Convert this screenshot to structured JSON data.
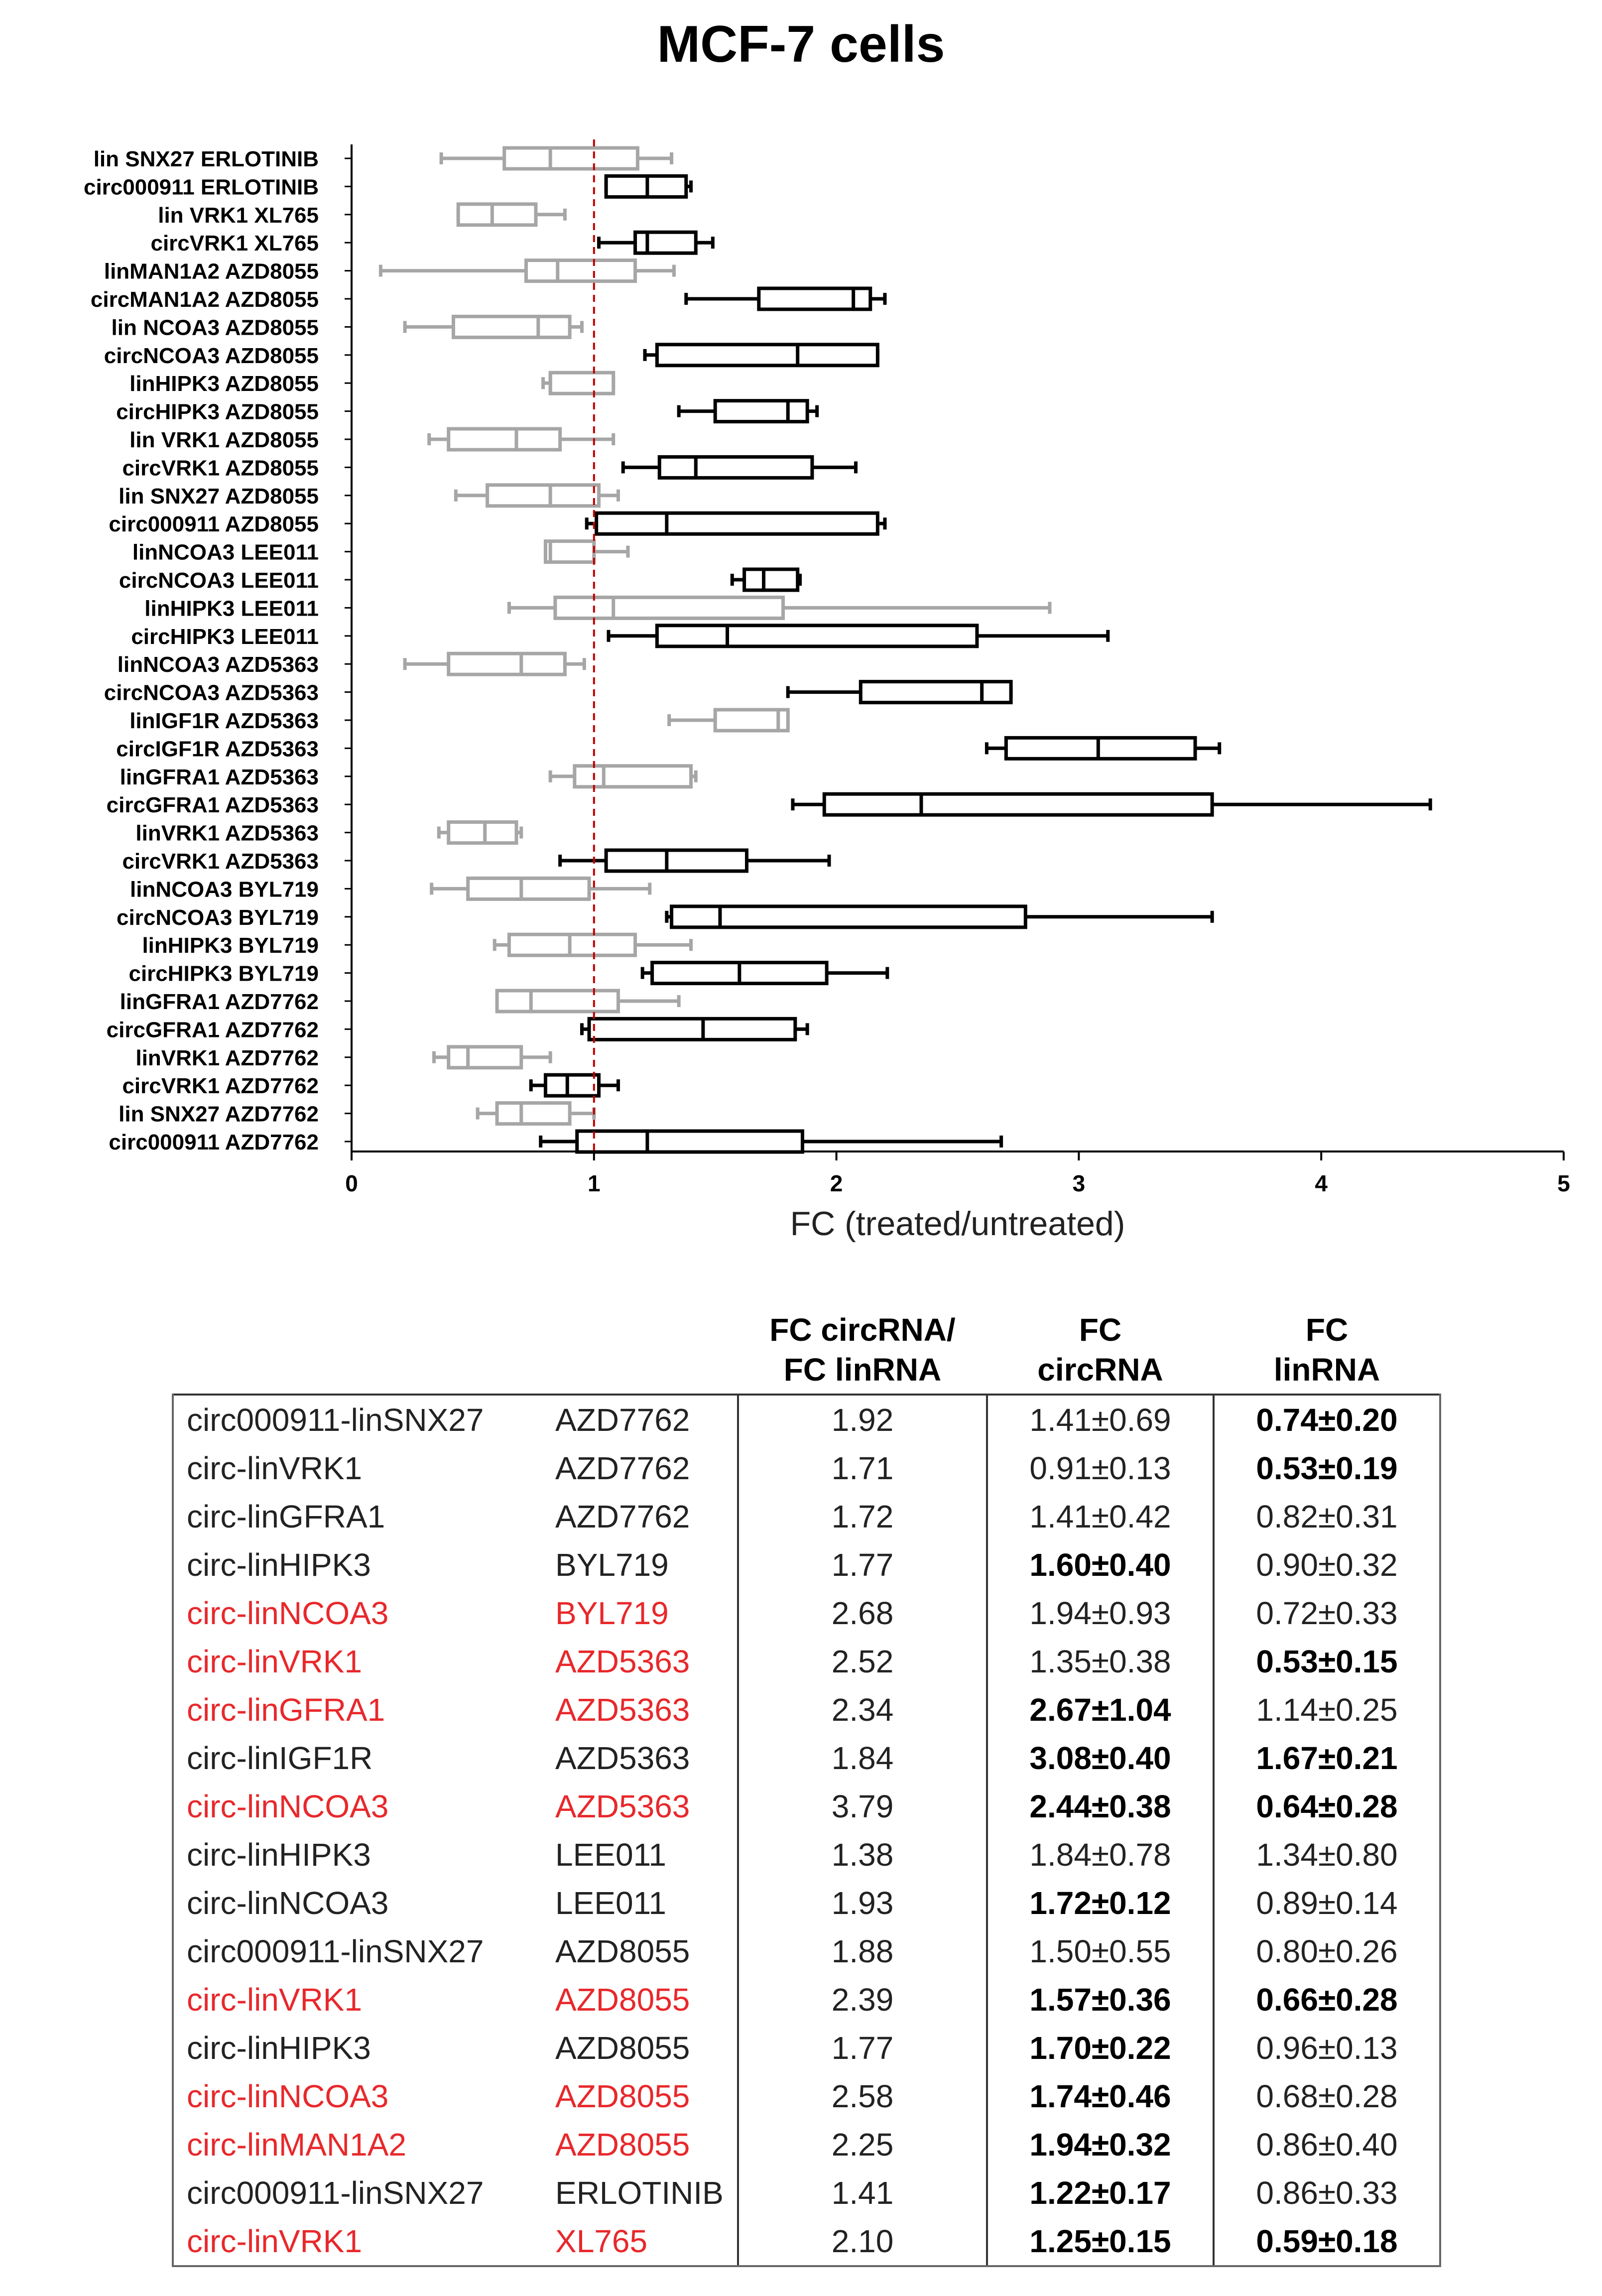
{
  "title": "MCF-7 cells",
  "chart_data": {
    "type": "box",
    "orientation": "horizontal",
    "xlabel": "FC (treated/untreated)",
    "xlim": [
      0,
      5
    ],
    "xticks": [
      "0",
      "1",
      "2",
      "3",
      "4",
      "5"
    ],
    "reference_line": 1,
    "colors": {
      "circ": "#000000",
      "lin": "#a6a6a6",
      "reference": "#c00000"
    },
    "series": [
      {
        "label": "lin SNX27 ERLOTINIB",
        "kind": "lin",
        "min": 0.37,
        "q1": 0.63,
        "median": 0.82,
        "q3": 1.18,
        "max": 1.32
      },
      {
        "label": "circ000911 ERLOTINIB",
        "kind": "circ",
        "min": 1.05,
        "q1": 1.05,
        "median": 1.22,
        "q3": 1.38,
        "max": 1.4
      },
      {
        "label": "lin VRK1 XL765",
        "kind": "lin",
        "min": 0.44,
        "q1": 0.44,
        "median": 0.58,
        "q3": 0.76,
        "max": 0.88
      },
      {
        "label": "circVRK1 XL765",
        "kind": "circ",
        "min": 1.02,
        "q1": 1.17,
        "median": 1.22,
        "q3": 1.42,
        "max": 1.49
      },
      {
        "label": "linMAN1A2 AZD8055",
        "kind": "lin",
        "min": 0.12,
        "q1": 0.72,
        "median": 0.85,
        "q3": 1.17,
        "max": 1.33
      },
      {
        "label": "circMAN1A2 AZD8055",
        "kind": "circ",
        "min": 1.38,
        "q1": 1.68,
        "median": 2.07,
        "q3": 2.14,
        "max": 2.2
      },
      {
        "label": "lin NCOA3 AZD8055",
        "kind": "lin",
        "min": 0.22,
        "q1": 0.42,
        "median": 0.77,
        "q3": 0.9,
        "max": 0.95
      },
      {
        "label": "circNCOA3 AZD8055",
        "kind": "circ",
        "min": 1.21,
        "q1": 1.26,
        "median": 1.84,
        "q3": 2.17,
        "max": 2.17
      },
      {
        "label": "linHIPK3 AZD8055",
        "kind": "lin",
        "min": 0.79,
        "q1": 0.82,
        "median": 0.82,
        "q3": 1.08,
        "max": 1.08
      },
      {
        "label": "circHIPK3 AZD8055",
        "kind": "circ",
        "min": 1.35,
        "q1": 1.5,
        "median": 1.8,
        "q3": 1.88,
        "max": 1.92
      },
      {
        "label": "lin VRK1 AZD8055",
        "kind": "lin",
        "min": 0.32,
        "q1": 0.4,
        "median": 0.68,
        "q3": 0.86,
        "max": 1.08
      },
      {
        "label": "circVRK1 AZD8055",
        "kind": "circ",
        "min": 1.12,
        "q1": 1.27,
        "median": 1.42,
        "q3": 1.9,
        "max": 2.08
      },
      {
        "label": "lin SNX27 AZD8055",
        "kind": "lin",
        "min": 0.43,
        "q1": 0.56,
        "median": 0.82,
        "q3": 1.02,
        "max": 1.1
      },
      {
        "label": "circ000911 AZD8055",
        "kind": "circ",
        "min": 0.97,
        "q1": 1.01,
        "median": 1.3,
        "q3": 2.17,
        "max": 2.2
      },
      {
        "label": "linNCOA3 LEE011",
        "kind": "lin",
        "min": 0.8,
        "q1": 0.8,
        "median": 0.82,
        "q3": 1.0,
        "max": 1.14
      },
      {
        "label": "circNCOA3 LEE011",
        "kind": "circ",
        "min": 1.57,
        "q1": 1.62,
        "median": 1.7,
        "q3": 1.84,
        "max": 1.85
      },
      {
        "label": "linHIPK3 LEE011",
        "kind": "lin",
        "min": 0.65,
        "q1": 0.84,
        "median": 1.08,
        "q3": 1.78,
        "max": 2.88
      },
      {
        "label": "circHIPK3 LEE011",
        "kind": "circ",
        "min": 1.06,
        "q1": 1.26,
        "median": 1.55,
        "q3": 2.58,
        "max": 3.12
      },
      {
        "label": "linNCOA3 AZD5363",
        "kind": "lin",
        "min": 0.22,
        "q1": 0.4,
        "median": 0.7,
        "q3": 0.88,
        "max": 0.96
      },
      {
        "label": "circNCOA3 AZD5363",
        "kind": "circ",
        "min": 1.8,
        "q1": 2.1,
        "median": 2.6,
        "q3": 2.72,
        "max": 2.72
      },
      {
        "label": "linIGF1R AZD5363",
        "kind": "lin",
        "min": 1.31,
        "q1": 1.5,
        "median": 1.76,
        "q3": 1.8,
        "max": 1.8
      },
      {
        "label": "circIGF1R AZD5363",
        "kind": "circ",
        "min": 2.62,
        "q1": 2.7,
        "median": 3.08,
        "q3": 3.48,
        "max": 3.58
      },
      {
        "label": "linGFRA1 AZD5363",
        "kind": "lin",
        "min": 0.82,
        "q1": 0.92,
        "median": 1.04,
        "q3": 1.4,
        "max": 1.42
      },
      {
        "label": "circGFRA1 AZD5363",
        "kind": "circ",
        "min": 1.82,
        "q1": 1.95,
        "median": 2.35,
        "q3": 3.55,
        "max": 4.45
      },
      {
        "label": "linVRK1 AZD5363",
        "kind": "lin",
        "min": 0.36,
        "q1": 0.4,
        "median": 0.55,
        "q3": 0.68,
        "max": 0.7
      },
      {
        "label": "circVRK1 AZD5363",
        "kind": "circ",
        "min": 0.86,
        "q1": 1.05,
        "median": 1.3,
        "q3": 1.63,
        "max": 1.97
      },
      {
        "label": "linNCOA3 BYL719",
        "kind": "lin",
        "min": 0.33,
        "q1": 0.48,
        "median": 0.7,
        "q3": 0.98,
        "max": 1.23
      },
      {
        "label": "circNCOA3 BYL719",
        "kind": "circ",
        "min": 1.3,
        "q1": 1.32,
        "median": 1.52,
        "q3": 2.78,
        "max": 3.55
      },
      {
        "label": "linHIPK3 BYL719",
        "kind": "lin",
        "min": 0.59,
        "q1": 0.65,
        "median": 0.9,
        "q3": 1.17,
        "max": 1.4
      },
      {
        "label": "circHIPK3 BYL719",
        "kind": "circ",
        "min": 1.2,
        "q1": 1.24,
        "median": 1.6,
        "q3": 1.96,
        "max": 2.21
      },
      {
        "label": "linGFRA1 AZD7762",
        "kind": "lin",
        "min": 0.6,
        "q1": 0.6,
        "median": 0.74,
        "q3": 1.1,
        "max": 1.35
      },
      {
        "label": "circGFRA1 AZD7762",
        "kind": "circ",
        "min": 0.95,
        "q1": 0.98,
        "median": 1.45,
        "q3": 1.83,
        "max": 1.88
      },
      {
        "label": "linVRK1 AZD7762",
        "kind": "lin",
        "min": 0.34,
        "q1": 0.4,
        "median": 0.48,
        "q3": 0.7,
        "max": 0.82
      },
      {
        "label": "circVRK1 AZD7762",
        "kind": "circ",
        "min": 0.74,
        "q1": 0.8,
        "median": 0.89,
        "q3": 1.02,
        "max": 1.1
      },
      {
        "label": "lin SNX27 AZD7762",
        "kind": "lin",
        "min": 0.52,
        "q1": 0.6,
        "median": 0.7,
        "q3": 0.9,
        "max": 1.0
      },
      {
        "label": "circ000911 AZD7762",
        "kind": "circ",
        "min": 0.78,
        "q1": 0.93,
        "median": 1.22,
        "q3": 1.86,
        "max": 2.68
      }
    ]
  },
  "table": {
    "headers": {
      "ratio": "FC circRNA/ FC linRNA",
      "circ": "FC circRNA",
      "lin": "FC linRNA"
    },
    "highlight_color": "#e8282b",
    "rows": [
      {
        "pair": "circ000911-linSNX27",
        "drug": "AZD7762",
        "ratio": "1.92",
        "circ": "1.41±0.69",
        "lin": "0.74±0.20",
        "circ_bold": false,
        "lin_bold": true,
        "highlight": false
      },
      {
        "pair": "circ-linVRK1",
        "drug": "AZD7762",
        "ratio": "1.71",
        "circ": "0.91±0.13",
        "lin": "0.53±0.19",
        "circ_bold": false,
        "lin_bold": true,
        "highlight": false
      },
      {
        "pair": "circ-linGFRA1",
        "drug": "AZD7762",
        "ratio": "1.72",
        "circ": "1.41±0.42",
        "lin": "0.82±0.31",
        "circ_bold": false,
        "lin_bold": false,
        "highlight": false
      },
      {
        "pair": "circ-linHIPK3",
        "drug": "BYL719",
        "ratio": "1.77",
        "circ": "1.60±0.40",
        "lin": "0.90±0.32",
        "circ_bold": true,
        "lin_bold": false,
        "highlight": false
      },
      {
        "pair": "circ-linNCOA3",
        "drug": "BYL719",
        "ratio": "2.68",
        "circ": "1.94±0.93",
        "lin": "0.72±0.33",
        "circ_bold": false,
        "lin_bold": false,
        "highlight": true
      },
      {
        "pair": "circ-linVRK1",
        "drug": "AZD5363",
        "ratio": "2.52",
        "circ": "1.35±0.38",
        "lin": "0.53±0.15",
        "circ_bold": false,
        "lin_bold": true,
        "highlight": true
      },
      {
        "pair": "circ-linGFRA1",
        "drug": "AZD5363",
        "ratio": "2.34",
        "circ": "2.67±1.04",
        "lin": "1.14±0.25",
        "circ_bold": true,
        "lin_bold": false,
        "highlight": true
      },
      {
        "pair": "circ-linIGF1R",
        "drug": "AZD5363",
        "ratio": "1.84",
        "circ": "3.08±0.40",
        "lin": "1.67±0.21",
        "circ_bold": true,
        "lin_bold": true,
        "highlight": false
      },
      {
        "pair": "circ-linNCOA3",
        "drug": "AZD5363",
        "ratio": "3.79",
        "circ": "2.44±0.38",
        "lin": "0.64±0.28",
        "circ_bold": true,
        "lin_bold": true,
        "highlight": true
      },
      {
        "pair": "circ-linHIPK3",
        "drug": "LEE011",
        "ratio": "1.38",
        "circ": "1.84±0.78",
        "lin": "1.34±0.80",
        "circ_bold": false,
        "lin_bold": false,
        "highlight": false
      },
      {
        "pair": "circ-linNCOA3",
        "drug": "LEE011",
        "ratio": "1.93",
        "circ": "1.72±0.12",
        "lin": "0.89±0.14",
        "circ_bold": true,
        "lin_bold": false,
        "highlight": false
      },
      {
        "pair": "circ000911-linSNX27",
        "drug": "AZD8055",
        "ratio": "1.88",
        "circ": "1.50±0.55",
        "lin": "0.80±0.26",
        "circ_bold": false,
        "lin_bold": false,
        "highlight": false
      },
      {
        "pair": "circ-linVRK1",
        "drug": "AZD8055",
        "ratio": "2.39",
        "circ": "1.57±0.36",
        "lin": "0.66±0.28",
        "circ_bold": true,
        "lin_bold": true,
        "highlight": true
      },
      {
        "pair": "circ-linHIPK3",
        "drug": "AZD8055",
        "ratio": "1.77",
        "circ": "1.70±0.22",
        "lin": "0.96±0.13",
        "circ_bold": true,
        "lin_bold": false,
        "highlight": false
      },
      {
        "pair": "circ-linNCOA3",
        "drug": "AZD8055",
        "ratio": "2.58",
        "circ": "1.74±0.46",
        "lin": "0.68±0.28",
        "circ_bold": true,
        "lin_bold": false,
        "highlight": true
      },
      {
        "pair": "circ-linMAN1A2",
        "drug": "AZD8055",
        "ratio": "2.25",
        "circ": "1.94±0.32",
        "lin": "0.86±0.40",
        "circ_bold": true,
        "lin_bold": false,
        "highlight": true
      },
      {
        "pair": "circ000911-linSNX27",
        "drug": "ERLOTINIB",
        "ratio": "1.41",
        "circ": "1.22±0.17",
        "lin": "0.86±0.33",
        "circ_bold": true,
        "lin_bold": false,
        "highlight": false
      },
      {
        "pair": "circ-linVRK1",
        "drug": "XL765",
        "ratio": "2.10",
        "circ": "1.25±0.15",
        "lin": "0.59±0.18",
        "circ_bold": true,
        "lin_bold": true,
        "highlight": true
      }
    ]
  }
}
